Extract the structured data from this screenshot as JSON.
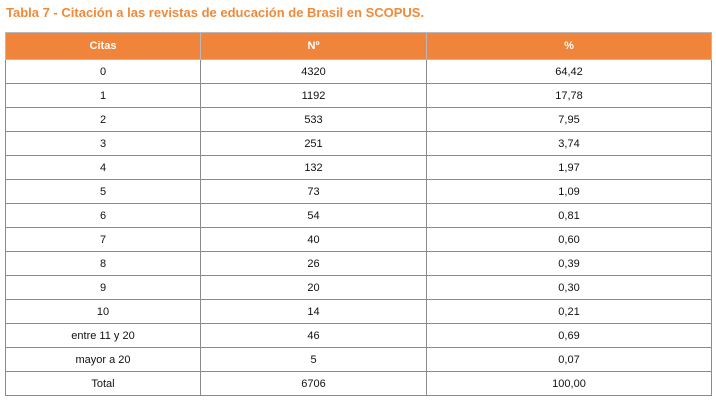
{
  "title": "Tabla 7 - Citación a las revistas de educación de Brasil en SCOPUS.",
  "colors": {
    "header_bg": "#ef843a",
    "title_text": "#ef8a3a",
    "border": "#8a8a8a"
  },
  "table": {
    "headers": [
      "Citas",
      "Nº",
      "%"
    ],
    "rows": [
      [
        "0",
        "4320",
        "64,42"
      ],
      [
        "1",
        "1192",
        "17,78"
      ],
      [
        "2",
        "533",
        "7,95"
      ],
      [
        "3",
        "251",
        "3,74"
      ],
      [
        "4",
        "132",
        "1,97"
      ],
      [
        "5",
        "73",
        "1,09"
      ],
      [
        "6",
        "54",
        "0,81"
      ],
      [
        "7",
        "40",
        "0,60"
      ],
      [
        "8",
        "26",
        "0,39"
      ],
      [
        "9",
        "20",
        "0,30"
      ],
      [
        "10",
        "14",
        "0,21"
      ],
      [
        "entre 11 y 20",
        "46",
        "0,69"
      ],
      [
        "mayor a 20",
        "5",
        "0,07"
      ],
      [
        "Total",
        "6706",
        "100,00"
      ]
    ]
  }
}
